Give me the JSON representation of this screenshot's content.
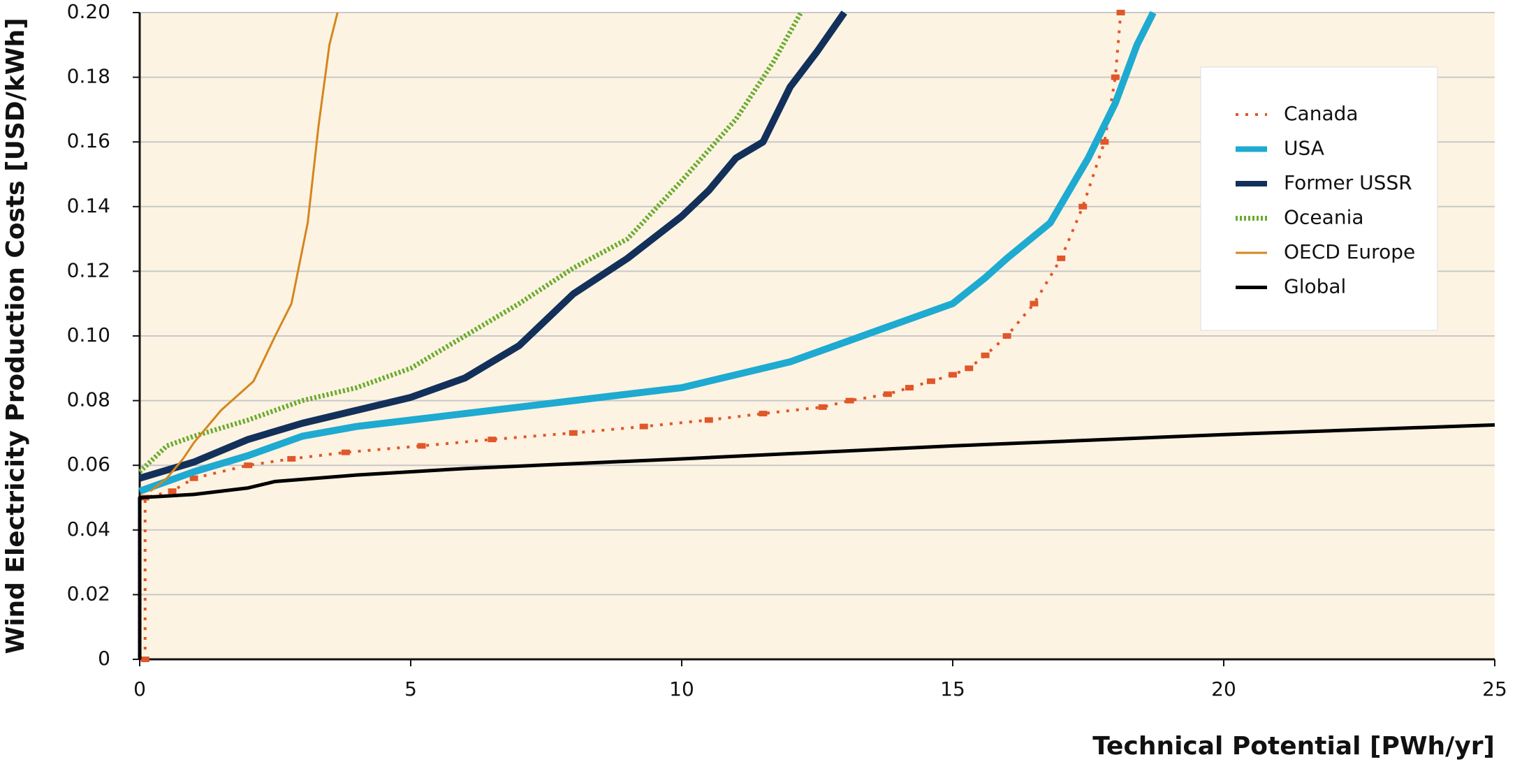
{
  "chart_data": {
    "type": "line",
    "xlabel": "Technical Potential [PWh/yr]",
    "ylabel": "Wind Electricity Production Costs [USD/kWh]",
    "xlim": [
      0,
      25
    ],
    "ylim": [
      0,
      0.2
    ],
    "xticks": [
      0,
      5,
      10,
      15,
      20,
      25
    ],
    "yticks": [
      0,
      0.02,
      0.04,
      0.06,
      0.08,
      {
        "value": 0.1,
        "label": "0.10"
      },
      0.12,
      0.14,
      0.16,
      0.18,
      {
        "value": 0.2,
        "label": "0.20"
      }
    ],
    "grid": true,
    "legend": "upper right",
    "series": [
      {
        "name": "Canada",
        "color": "#e0572a",
        "style": "marker-dashed",
        "line_width": 4,
        "x": [
          0.1,
          0.1,
          0.6,
          1,
          2,
          2.8,
          3.8,
          5.2,
          6.5,
          8,
          9.3,
          10.5,
          11.5,
          12.6,
          13.1,
          13.8,
          14.2,
          14.6,
          15,
          15.3,
          15.6,
          16,
          16.5,
          17,
          17.4,
          17.8,
          18,
          18.1
        ],
        "values": [
          0,
          0.05,
          0.052,
          0.056,
          0.06,
          0.062,
          0.064,
          0.066,
          0.068,
          0.07,
          0.072,
          0.074,
          0.076,
          0.078,
          0.08,
          0.082,
          0.084,
          0.086,
          0.088,
          0.09,
          0.094,
          0.1,
          0.11,
          0.124,
          0.14,
          0.16,
          0.18,
          0.2
        ]
      },
      {
        "name": "USA",
        "color": "#1eaad1",
        "style": "solid",
        "line_width": 10,
        "x": [
          0,
          1,
          2,
          3,
          4,
          6,
          8,
          10,
          11,
          12,
          13,
          14,
          15,
          15.6,
          16,
          16.8,
          17.5,
          18,
          18.4,
          18.7
        ],
        "values": [
          0.052,
          0.058,
          0.063,
          0.069,
          0.072,
          0.076,
          0.08,
          0.084,
          0.088,
          0.092,
          0.098,
          0.104,
          0.11,
          0.118,
          0.124,
          0.135,
          0.155,
          0.172,
          0.19,
          0.2
        ]
      },
      {
        "name": "Former USSR",
        "color": "#12305a",
        "style": "solid",
        "line_width": 10,
        "x": [
          0,
          1,
          2,
          3,
          4,
          5,
          6,
          7,
          7.5,
          8,
          9,
          10,
          10.5,
          11,
          11.5,
          12,
          12.5,
          13
        ],
        "values": [
          0.056,
          0.061,
          0.068,
          0.073,
          0.077,
          0.081,
          0.087,
          0.097,
          0.105,
          0.113,
          0.124,
          0.137,
          0.145,
          0.155,
          0.16,
          0.177,
          0.188,
          0.2
        ]
      },
      {
        "name": "Oceania",
        "color": "#6aab2e",
        "style": "dotted",
        "line_width": 7,
        "x": [
          0,
          0.5,
          1,
          2,
          3,
          4,
          5,
          6,
          7,
          8,
          9,
          10,
          11,
          11.7,
          12.2
        ],
        "values": [
          0.058,
          0.066,
          0.069,
          0.074,
          0.08,
          0.084,
          0.09,
          0.1,
          0.11,
          0.121,
          0.13,
          0.148,
          0.167,
          0.185,
          0.2
        ]
      },
      {
        "name": "OECD Europe",
        "color": "#d4861e",
        "style": "solid",
        "line_width": 3,
        "x": [
          0.2,
          0.5,
          0.8,
          1,
          1.5,
          2.1,
          2.5,
          2.8,
          3.1,
          3.3,
          3.5,
          3.65
        ],
        "values": [
          0.052,
          0.056,
          0.062,
          0.067,
          0.077,
          0.086,
          0.1,
          0.11,
          0.135,
          0.165,
          0.19,
          0.2
        ]
      },
      {
        "name": "Global",
        "color": "#000000",
        "style": "solid",
        "line_width": 5,
        "x": [
          0,
          0,
          1,
          2,
          2.5,
          4,
          6,
          8,
          10,
          15,
          20,
          25
        ],
        "values": [
          0,
          0.05,
          0.051,
          0.053,
          0.055,
          0.057,
          0.059,
          0.0605,
          0.062,
          0.066,
          0.0695,
          0.0725
        ]
      }
    ]
  }
}
